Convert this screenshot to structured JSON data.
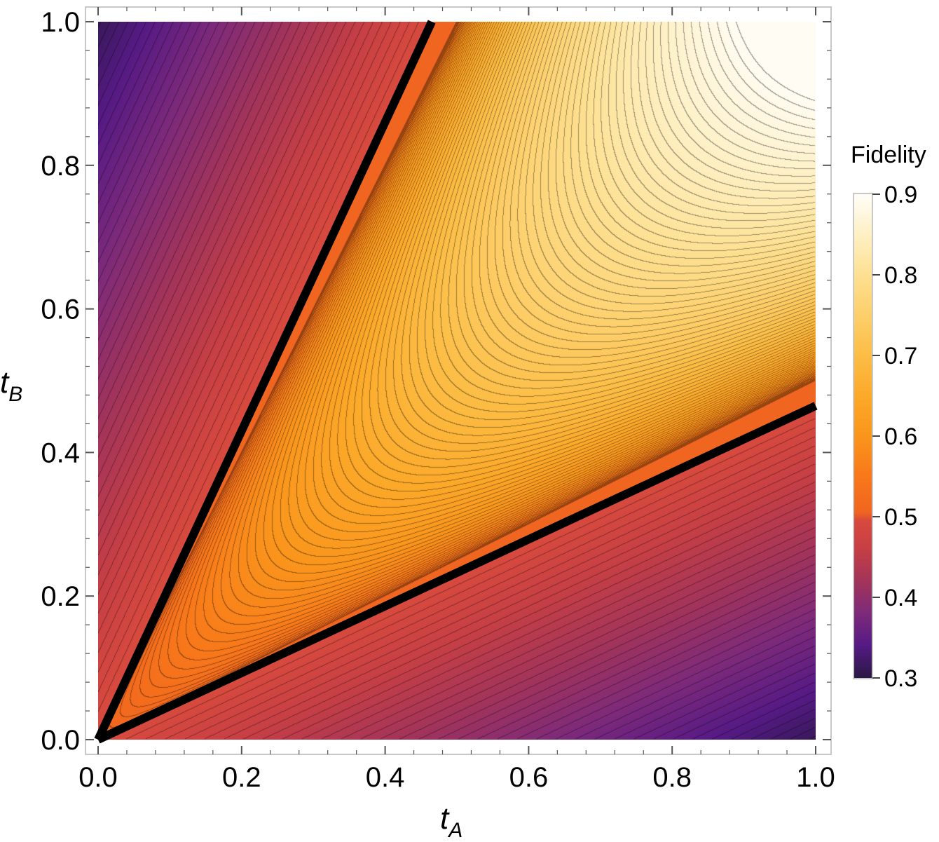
{
  "chart_data": {
    "type": "heatmap",
    "title": "",
    "xlabel": {
      "main": "t",
      "sub": "A"
    },
    "ylabel": {
      "main": "t",
      "sub": "B"
    },
    "xlim": [
      0.0,
      1.0
    ],
    "ylim": [
      0.0,
      1.0
    ],
    "x_ticks": [
      "0.0",
      "0.2",
      "0.4",
      "0.6",
      "0.8",
      "1.0"
    ],
    "y_ticks": [
      "0.0",
      "0.2",
      "0.4",
      "0.6",
      "0.8",
      "1.0"
    ],
    "x_tick_values": [
      0.0,
      0.2,
      0.4,
      0.6,
      0.8,
      1.0
    ],
    "y_tick_values": [
      0.0,
      0.2,
      0.4,
      0.6,
      0.8,
      1.0
    ],
    "colorbar": {
      "title": "Fidelity",
      "range": [
        0.3,
        0.9
      ],
      "ticks": [
        "0.3",
        "0.4",
        "0.5",
        "0.6",
        "0.7",
        "0.8",
        "0.9"
      ],
      "tick_values": [
        0.3,
        0.4,
        0.5,
        0.6,
        0.7,
        0.8,
        0.9
      ]
    },
    "colormap_stops": [
      {
        "v": 0.3,
        "color": "#2a1845"
      },
      {
        "v": 0.34,
        "color": "#561a85"
      },
      {
        "v": 0.38,
        "color": "#7e2a7a"
      },
      {
        "v": 0.42,
        "color": "#a3345a"
      },
      {
        "v": 0.46,
        "color": "#c63f45"
      },
      {
        "v": 0.495,
        "color": "#d84a3e"
      },
      {
        "v": 0.505,
        "color": "#f0651f"
      },
      {
        "v": 0.55,
        "color": "#f8781a"
      },
      {
        "v": 0.6,
        "color": "#fa951c"
      },
      {
        "v": 0.65,
        "color": "#fca92a"
      },
      {
        "v": 0.7,
        "color": "#fcbd45"
      },
      {
        "v": 0.75,
        "color": "#fdcf6b"
      },
      {
        "v": 0.8,
        "color": "#fde092"
      },
      {
        "v": 0.85,
        "color": "#fef0c4"
      },
      {
        "v": 0.9,
        "color": "#fffdf7"
      }
    ],
    "contour_step": 0.005,
    "boundary_lines": [
      {
        "name": "upper-boundary",
        "points": [
          [
            0.0,
            0.0
          ],
          [
            0.465,
            1.0
          ]
        ]
      },
      {
        "name": "lower-boundary",
        "points": [
          [
            0.0,
            0.0
          ],
          [
            1.0,
            0.465
          ]
        ]
      }
    ],
    "boundary_color": "#000000"
  }
}
